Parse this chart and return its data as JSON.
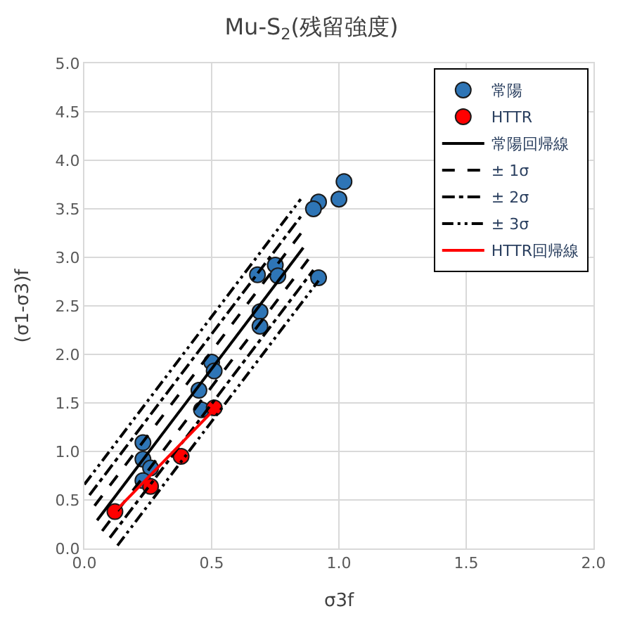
{
  "chart_data": {
    "type": "scatter",
    "title": "Mu-S$_{2}$(残留強度)",
    "xlabel": "σ3f",
    "ylabel": "(σ1-σ3)f",
    "xlim": [
      0,
      2
    ],
    "ylim": [
      0,
      5
    ],
    "xticks": [
      {
        "value": 0,
        "label": "0.0"
      },
      {
        "value": 0.5,
        "label": "0.5"
      },
      {
        "value": 1,
        "label": "1.0"
      },
      {
        "value": 1.5,
        "label": "1.5"
      },
      {
        "value": 2,
        "label": "2.0"
      }
    ],
    "yticks": [
      {
        "value": 0,
        "label": "0.0"
      },
      {
        "value": 0.5,
        "label": "0.5"
      },
      {
        "value": 1,
        "label": "1.0"
      },
      {
        "value": 1.5,
        "label": "1.5"
      },
      {
        "value": 2,
        "label": "2.0"
      },
      {
        "value": 2.5,
        "label": "2.5"
      },
      {
        "value": 3,
        "label": "3.0"
      },
      {
        "value": 3.5,
        "label": "3.5"
      },
      {
        "value": 4,
        "label": "4.0"
      },
      {
        "value": 4.5,
        "label": "4.5"
      },
      {
        "value": 5,
        "label": "5.0"
      }
    ],
    "grid": true,
    "legend": "top right",
    "series": [
      {
        "name": "常陽",
        "marker": "circle",
        "color": "#2e75b6",
        "x": [
          1.02,
          1.0,
          0.92,
          0.9,
          0.92,
          0.75,
          0.76,
          0.68,
          0.69,
          0.69,
          0.5,
          0.51,
          0.45,
          0.46,
          0.23,
          0.23,
          0.26,
          0.23
        ],
        "values": [
          3.78,
          3.6,
          3.57,
          3.5,
          2.79,
          2.92,
          2.81,
          2.82,
          2.44,
          2.29,
          1.92,
          1.83,
          1.63,
          1.43,
          1.09,
          0.92,
          0.83,
          0.7
        ]
      },
      {
        "name": "HTTR",
        "marker": "circle",
        "color": "#ff0000",
        "x": [
          0.12,
          0.26,
          0.38,
          0.51
        ],
        "values": [
          0.38,
          0.64,
          0.95,
          1.45
        ]
      },
      {
        "name": "常陽回帰線",
        "type": "line",
        "color": "#000000",
        "line_style": "solid",
        "x": [
          0.05,
          0.86
        ],
        "values": [
          0.29,
          3.1
        ]
      },
      {
        "name": "± 1σ",
        "type": "line",
        "color": "#000000",
        "line_style": "dashed",
        "x": [
          0.04,
          0.86
        ],
        "values": [
          0.44,
          3.28
        ]
      },
      {
        "type": "line",
        "color": "#000000",
        "line_style": "dashed",
        "x": [
          0.07,
          0.88
        ],
        "values": [
          0.18,
          2.98
        ]
      },
      {
        "name": "± 2σ",
        "type": "line",
        "color": "#000000",
        "line_style": "dashdot",
        "x": [
          0.02,
          0.85
        ],
        "values": [
          0.55,
          3.42
        ]
      },
      {
        "type": "line",
        "color": "#000000",
        "line_style": "dashdot",
        "x": [
          0.1,
          0.9
        ],
        "values": [
          0.11,
          2.87
        ]
      },
      {
        "name": "± 3σ",
        "type": "line",
        "color": "#000000",
        "line_style": "dashdotdot",
        "x": [
          0.0,
          0.85
        ],
        "values": [
          0.66,
          3.6
        ]
      },
      {
        "type": "line",
        "color": "#000000",
        "line_style": "dashdotdot",
        "x": [
          0.13,
          0.92
        ],
        "values": [
          0.03,
          2.76
        ]
      },
      {
        "name": "HTTR回帰線",
        "type": "line",
        "color": "#ff0000",
        "line_style": "solid",
        "x": [
          0.12,
          0.52
        ],
        "values": [
          0.38,
          1.46
        ]
      }
    ]
  }
}
